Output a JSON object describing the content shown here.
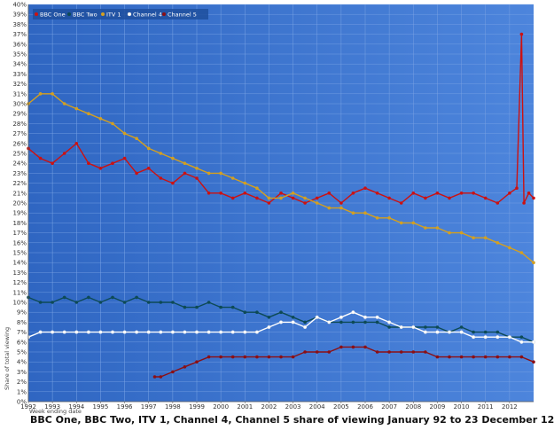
{
  "chart_data": {
    "type": "line",
    "title": "BBC One, BBC Two, ITV 1, Channel 4, Channel 5 share of viewing January 92 to 23 December 12",
    "xlabel": "Week ending date",
    "ylabel": "Share of total viewing",
    "xlim": [
      1992,
      2013
    ],
    "ylim": [
      0,
      40
    ],
    "x_ticks": [
      "1992",
      "1993",
      "1994",
      "1995",
      "1996",
      "1997",
      "1998",
      "1999",
      "2000",
      "2001",
      "2002",
      "2003",
      "2004",
      "2005",
      "2006",
      "2007",
      "2008",
      "2009",
      "2010",
      "2011",
      "2012"
    ],
    "y_ticks": [
      "0%",
      "1%",
      "2%",
      "3%",
      "4%",
      "5%",
      "6%",
      "7%",
      "8%",
      "9%",
      "10%",
      "11%",
      "12%",
      "13%",
      "14%",
      "15%",
      "16%",
      "17%",
      "18%",
      "19%",
      "20%",
      "21%",
      "22%",
      "23%",
      "24%",
      "25%",
      "26%",
      "27%",
      "28%",
      "29%",
      "30%",
      "31%",
      "32%",
      "33%",
      "34%",
      "35%",
      "36%",
      "37%",
      "38%",
      "39%",
      "40%"
    ],
    "legend_position": "top-left",
    "grid": true,
    "series": [
      {
        "name": "BBC One",
        "color": "#cc1111",
        "x": [
          1992.0,
          1992.5,
          1993.0,
          1993.5,
          1994.0,
          1994.5,
          1995.0,
          1995.5,
          1996.0,
          1996.5,
          1997.0,
          1997.5,
          1998.0,
          1998.5,
          1999.0,
          1999.5,
          2000.0,
          2000.5,
          2001.0,
          2001.5,
          2002.0,
          2002.5,
          2003.0,
          2003.5,
          2004.0,
          2004.5,
          2005.0,
          2005.5,
          2006.0,
          2006.5,
          2007.0,
          2007.5,
          2008.0,
          2008.5,
          2009.0,
          2009.5,
          2010.0,
          2010.5,
          2011.0,
          2011.5,
          2012.0,
          2012.3,
          2012.5,
          2012.6,
          2012.8,
          2013.0
        ],
        "values": [
          25.5,
          24.5,
          24,
          25,
          26,
          24,
          23.5,
          24,
          24.5,
          23,
          23.5,
          22.5,
          22,
          23,
          22.5,
          21,
          21,
          20.5,
          21,
          20.5,
          20,
          21,
          20.5,
          20,
          20.5,
          21,
          20,
          21,
          21.5,
          21,
          20.5,
          20,
          21,
          20.5,
          21,
          20.5,
          21,
          21,
          20.5,
          20,
          21,
          21.5,
          37,
          20,
          21,
          20.5
        ]
      },
      {
        "name": "BBC Two",
        "color": "#0d4a55",
        "x": [
          1992.0,
          1992.5,
          1993.0,
          1993.5,
          1994.0,
          1994.5,
          1995.0,
          1995.5,
          1996.0,
          1996.5,
          1997.0,
          1997.5,
          1998.0,
          1998.5,
          1999.0,
          1999.5,
          2000.0,
          2000.5,
          2001.0,
          2001.5,
          2002.0,
          2002.5,
          2003.0,
          2003.5,
          2004.0,
          2004.5,
          2005.0,
          2005.5,
          2006.0,
          2006.5,
          2007.0,
          2007.5,
          2008.0,
          2008.5,
          2009.0,
          2009.5,
          2010.0,
          2010.5,
          2011.0,
          2011.5,
          2012.0,
          2012.5,
          2013.0
        ],
        "values": [
          10.5,
          10,
          10,
          10.5,
          10,
          10.5,
          10,
          10.5,
          10,
          10.5,
          10,
          10,
          10,
          9.5,
          9.5,
          10,
          9.5,
          9.5,
          9,
          9,
          8.5,
          9,
          8.5,
          8,
          8.5,
          8,
          8,
          8,
          8,
          8,
          7.5,
          7.5,
          7.5,
          7.5,
          7.5,
          7,
          7.5,
          7,
          7,
          7,
          6.5,
          6.5,
          6
        ]
      },
      {
        "name": "ITV 1",
        "color": "#d4a020",
        "x": [
          1992.0,
          1992.5,
          1993.0,
          1993.5,
          1994.0,
          1994.5,
          1995.0,
          1995.5,
          1996.0,
          1996.5,
          1997.0,
          1997.5,
          1998.0,
          1998.5,
          1999.0,
          1999.5,
          2000.0,
          2000.5,
          2001.0,
          2001.5,
          2002.0,
          2002.5,
          2003.0,
          2003.5,
          2004.0,
          2004.5,
          2005.0,
          2005.5,
          2006.0,
          2006.5,
          2007.0,
          2007.5,
          2008.0,
          2008.5,
          2009.0,
          2009.5,
          2010.0,
          2010.5,
          2011.0,
          2011.5,
          2012.0,
          2012.5,
          2013.0
        ],
        "values": [
          30,
          31,
          31,
          30,
          29.5,
          29,
          28.5,
          28,
          27,
          26.5,
          25.5,
          25,
          24.5,
          24,
          23.5,
          23,
          23,
          22.5,
          22,
          21.5,
          20.5,
          20.5,
          21,
          20.5,
          20,
          19.5,
          19.5,
          19,
          19,
          18.5,
          18.5,
          18,
          18,
          17.5,
          17.5,
          17,
          17,
          16.5,
          16.5,
          16,
          15.5,
          15,
          14
        ]
      },
      {
        "name": "Channel 4",
        "color": "#ffffff",
        "x": [
          1992.0,
          1992.5,
          1993.0,
          1993.5,
          1994.0,
          1994.5,
          1995.0,
          1995.5,
          1996.0,
          1996.5,
          1997.0,
          1997.5,
          1998.0,
          1998.5,
          1999.0,
          1999.5,
          2000.0,
          2000.5,
          2001.0,
          2001.5,
          2002.0,
          2002.5,
          2003.0,
          2003.5,
          2004.0,
          2004.5,
          2005.0,
          2005.5,
          2006.0,
          2006.5,
          2007.0,
          2007.5,
          2008.0,
          2008.5,
          2009.0,
          2009.5,
          2010.0,
          2010.5,
          2011.0,
          2011.5,
          2012.0,
          2012.5,
          2013.0
        ],
        "values": [
          6.5,
          7,
          7,
          7,
          7,
          7,
          7,
          7,
          7,
          7,
          7,
          7,
          7,
          7,
          7,
          7,
          7,
          7,
          7,
          7,
          7.5,
          8,
          8,
          7.5,
          8.5,
          8,
          8.5,
          9,
          8.5,
          8.5,
          8,
          7.5,
          7.5,
          7,
          7,
          7,
          7,
          6.5,
          6.5,
          6.5,
          6.5,
          6,
          6
        ]
      },
      {
        "name": "Channel 5",
        "color": "#8b0f14",
        "x": [
          1997.25,
          1997.5,
          1998.0,
          1998.5,
          1999.0,
          1999.5,
          2000.0,
          2000.5,
          2001.0,
          2001.5,
          2002.0,
          2002.5,
          2003.0,
          2003.5,
          2004.0,
          2004.5,
          2005.0,
          2005.5,
          2006.0,
          2006.5,
          2007.0,
          2007.5,
          2008.0,
          2008.5,
          2009.0,
          2009.5,
          2010.0,
          2010.5,
          2011.0,
          2011.5,
          2012.0,
          2012.5,
          2013.0
        ],
        "values": [
          2.5,
          2.5,
          3,
          3.5,
          4,
          4.5,
          4.5,
          4.5,
          4.5,
          4.5,
          4.5,
          4.5,
          4.5,
          5,
          5,
          5,
          5.5,
          5.5,
          5.5,
          5,
          5,
          5,
          5,
          5,
          4.5,
          4.5,
          4.5,
          4.5,
          4.5,
          4.5,
          4.5,
          4.5,
          4
        ]
      }
    ]
  }
}
